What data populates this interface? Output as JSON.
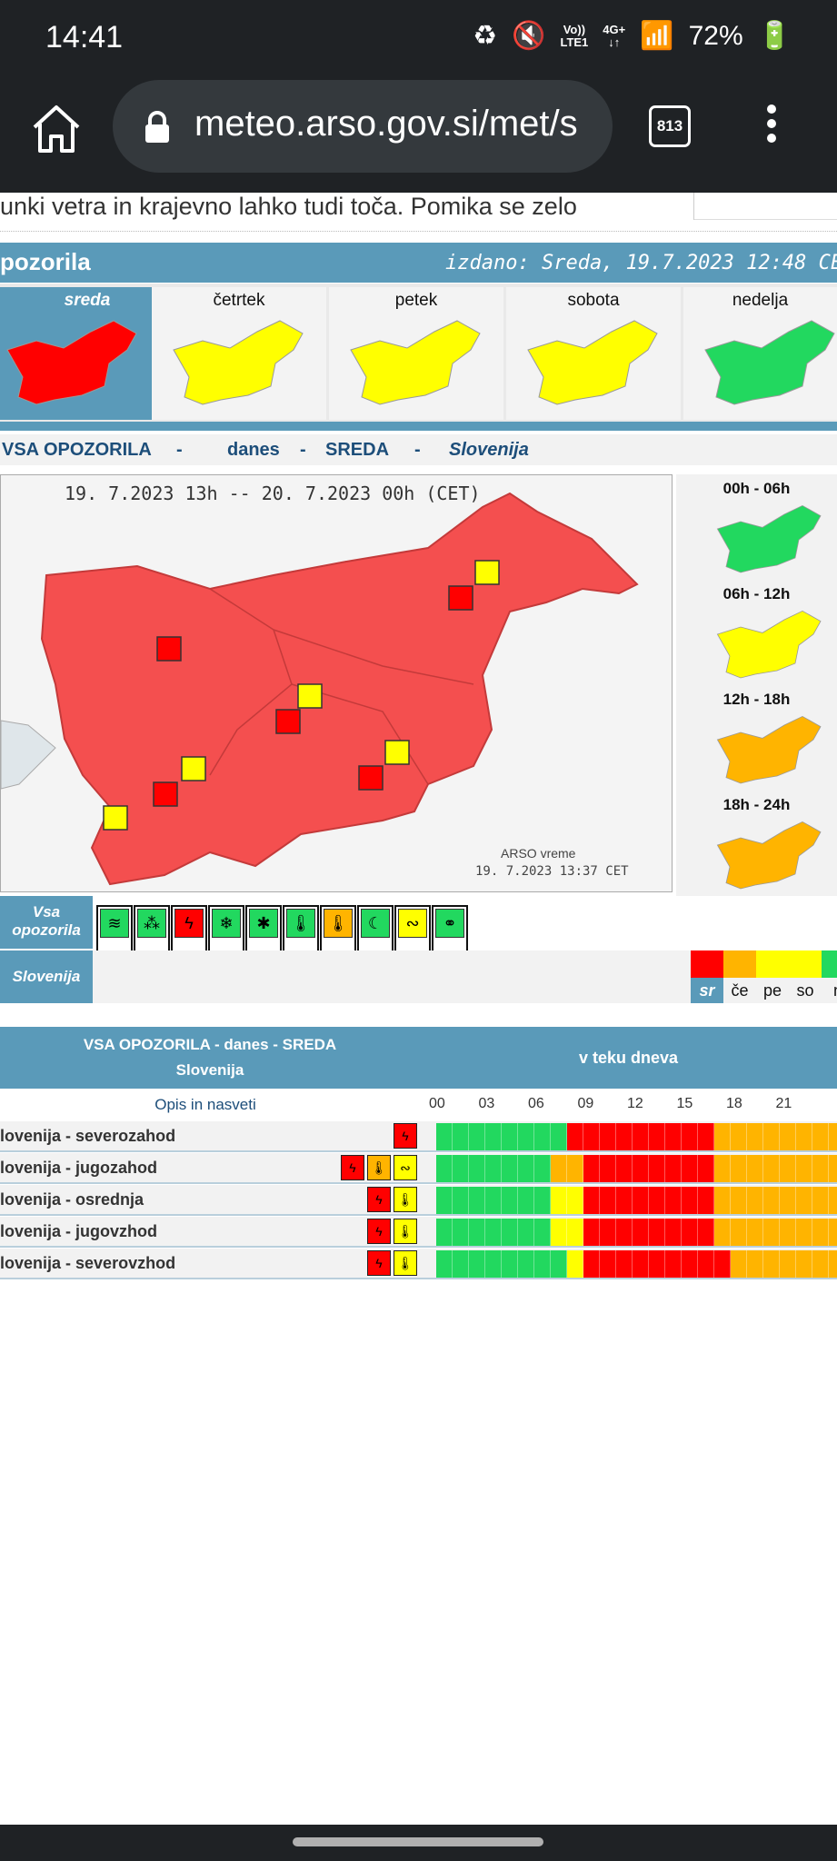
{
  "statusbar": {
    "time": "14:41",
    "net_top": "Vo))",
    "net_bottom": "LTE1",
    "net2_top": "4G+",
    "battery": "72%"
  },
  "browser": {
    "url": "meteo.arso.gov.si/met/s",
    "tab_count": "813"
  },
  "page": {
    "top_text": "unki vetra in krajevno lahko tudi toča. Pomika se zelo",
    "header_title": "pozorila",
    "issued": "izdano: Sreda, 19.7.2023 12:48 CE",
    "days": [
      {
        "label": "sreda",
        "color": "#ff0000",
        "selected": true
      },
      {
        "label": "četrtek",
        "color": "#ffff00",
        "selected": false
      },
      {
        "label": "petek",
        "color": "#ffff00",
        "selected": false
      },
      {
        "label": "sobota",
        "color": "#ffff00",
        "selected": false
      },
      {
        "label": "nedelja",
        "color": "#22d85f",
        "selected": false
      }
    ],
    "title_row": {
      "p1": "VSA OPOZORILA",
      "dash": "-",
      "p2": "danes",
      "p3": "SREDA",
      "p4": "Slovenija"
    },
    "map_dates": "19. 7.2023 13h -- 20. 7.2023 00h    (CET)",
    "map_credit1": "ARSO vreme",
    "map_credit2": "19. 7.2023  13:37 CET",
    "periods": [
      {
        "label": "00h - 06h",
        "color": "#22d85f"
      },
      {
        "label": "06h - 12h",
        "color": "#ffff00"
      },
      {
        "label": "12h - 18h",
        "color": "#ffb400"
      },
      {
        "label": "18h - 24h",
        "color": "#ffb400"
      }
    ],
    "legend_label": "Vsa opozorila",
    "legend_icons": [
      {
        "icon": "wind-icon",
        "color": "#22d85f",
        "glyph": "≋"
      },
      {
        "icon": "rain-icon",
        "color": "#22d85f",
        "glyph": "⁂"
      },
      {
        "icon": "thunderstorm-icon",
        "color": "#ff0000",
        "glyph": "ϟ"
      },
      {
        "icon": "snow-icon",
        "color": "#22d85f",
        "glyph": "❄"
      },
      {
        "icon": "ice-icon",
        "color": "#22d85f",
        "glyph": "✱"
      },
      {
        "icon": "cold-icon",
        "color": "#22d85f",
        "glyph": "🌡"
      },
      {
        "icon": "heat-icon",
        "color": "#ffb400",
        "glyph": "🌡"
      },
      {
        "icon": "fog-icon",
        "color": "#22d85f",
        "glyph": "☾"
      },
      {
        "icon": "coastal-icon",
        "color": "#ffff00",
        "glyph": "∾"
      },
      {
        "icon": "fire-icon",
        "color": "#22d85f",
        "glyph": "⚭"
      }
    ],
    "region_label": "Slovenija",
    "day_strip": [
      {
        "label": "sr",
        "color": "#ff0000",
        "selected": true
      },
      {
        "label": "če",
        "color": "#ffb400",
        "selected": false
      },
      {
        "label": "pe",
        "color": "#ffff00",
        "selected": false
      },
      {
        "label": "so",
        "color": "#ffff00",
        "selected": false
      },
      {
        "label": "n",
        "color": "#22d85f",
        "selected": false
      }
    ],
    "table": {
      "h1a": "VSA OPOZORILA - danes - SREDA",
      "h1b": "Slovenija",
      "h2": "v teku dneva",
      "opis": "Opis in nasveti",
      "hours": [
        "00",
        "03",
        "06",
        "09",
        "12",
        "15",
        "18",
        "21"
      ],
      "rows": [
        {
          "name": "lovenija - severozahod",
          "icons": [
            {
              "glyph": "ϟ",
              "color": "#ff0000"
            }
          ],
          "bars": "GGGGGGGGRRRRRRRRROOOOOOOO"
        },
        {
          "name": "lovenija - jugozahod",
          "icons": [
            {
              "glyph": "ϟ",
              "color": "#ff0000"
            },
            {
              "glyph": "🌡",
              "color": "#ffb400"
            },
            {
              "glyph": "∾",
              "color": "#ffff00"
            }
          ],
          "bars": "GGGGGGGOORRRRRRRROOOOOOOO"
        },
        {
          "name": "lovenija - osrednja",
          "icons": [
            {
              "glyph": "ϟ",
              "color": "#ff0000"
            },
            {
              "glyph": "🌡",
              "color": "#ffff00"
            }
          ],
          "bars": "GGGGGGGYYRRRRRRRROOOOOOOO"
        },
        {
          "name": "lovenija - jugovzhod",
          "icons": [
            {
              "glyph": "ϟ",
              "color": "#ff0000"
            },
            {
              "glyph": "🌡",
              "color": "#ffff00"
            }
          ],
          "bars": "GGGGGGGYYRRRRRRRROOOOOOOO"
        },
        {
          "name": "lovenija - severovzhod",
          "icons": [
            {
              "glyph": "ϟ",
              "color": "#ff0000"
            },
            {
              "glyph": "🌡",
              "color": "#ffff00"
            }
          ],
          "bars": "GGGGGGGGYRRRRRRRRROOOOOOO"
        }
      ]
    },
    "colors": {
      "green": "#22d85f",
      "yellow": "#ffff00",
      "orange": "#ffb400",
      "red": "#ff0000",
      "header": "#5a9ab9"
    }
  }
}
